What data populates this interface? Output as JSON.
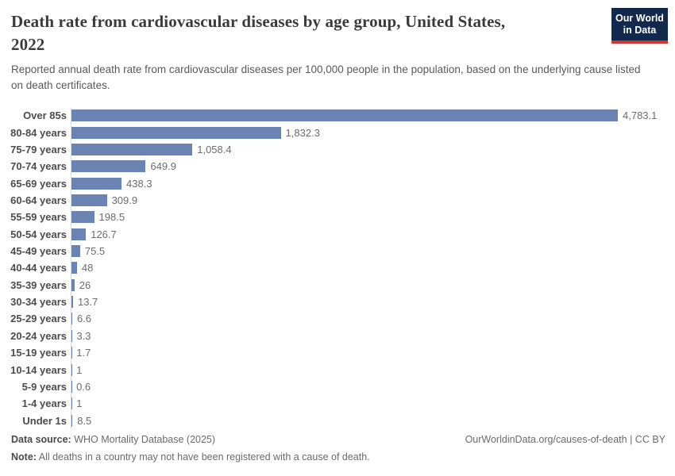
{
  "header": {
    "title_line1": "Death rate from cardiovascular diseases by age group, United States,",
    "title_line2": "2022",
    "subtitle": "Reported annual death rate from cardiovascular diseases per 100,000 people in the population, based on the underlying cause listed on death certificates.",
    "logo": {
      "line1": "Our World",
      "line2": "in Data",
      "bg_color": "#12284c",
      "accent_color": "#d1352c"
    }
  },
  "chart_data": {
    "type": "bar",
    "orientation": "horizontal",
    "title": "Death rate from cardiovascular diseases by age group, United States, 2022",
    "unit": "deaths per 100,000 people",
    "xlabel": "",
    "ylabel": "",
    "xlim": [
      0,
      4783.1
    ],
    "grid": false,
    "legend": "none",
    "bar_color": "#6b83b2",
    "axis_color": "#d9d9d9",
    "categories": [
      "Over 85s",
      "80-84 years",
      "75-79 years",
      "70-74 years",
      "65-69 years",
      "60-64 years",
      "55-59 years",
      "50-54 years",
      "45-49 years",
      "40-44 years",
      "35-39 years",
      "30-34 years",
      "25-29 years",
      "20-24 years",
      "15-19 years",
      "10-14 years",
      "5-9 years",
      "1-4 years",
      "Under 1s"
    ],
    "values": [
      4783.1,
      1832.3,
      1058.4,
      649.9,
      438.3,
      309.9,
      198.5,
      126.7,
      75.5,
      48,
      26,
      13.7,
      6.6,
      3.3,
      1.7,
      1,
      0.6,
      1,
      8.5
    ],
    "value_labels": [
      "4,783.1",
      "1,832.3",
      "1,058.4",
      "649.9",
      "438.3",
      "309.9",
      "198.5",
      "126.7",
      "75.5",
      "48",
      "26",
      "13.7",
      "6.6",
      "3.3",
      "1.7",
      "1",
      "0.6",
      "1",
      "8.5"
    ]
  },
  "footer": {
    "source_label": "Data source:",
    "source_text": " WHO Mortality Database (2025)",
    "note_label": "Note:",
    "note_text": " All deaths in a country may not have been registered with a cause of death.",
    "right_text": "OurWorldinData.org/causes-of-death | CC BY"
  }
}
